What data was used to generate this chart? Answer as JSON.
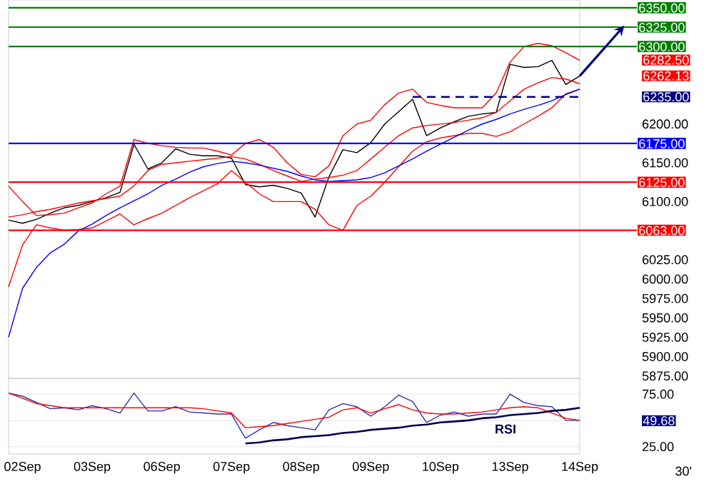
{
  "chart_data": [
    {
      "type": "line",
      "tick_labels": "y",
      "ylim": [
        5872,
        6360
      ],
      "categories": [
        null,
        null,
        null,
        null,
        null,
        null,
        null,
        null,
        null,
        null,
        null,
        null,
        null,
        null,
        null,
        null,
        null,
        null,
        null,
        null,
        null,
        null,
        null,
        null,
        null,
        null,
        null,
        null,
        null,
        null,
        null,
        null,
        null,
        null,
        null,
        null,
        null,
        null,
        null,
        null,
        null,
        null
      ],
      "yticks": [
        {
          "value": 5875,
          "label": "5875.00"
        },
        {
          "value": 5900,
          "label": "5900.00"
        },
        {
          "value": 5925,
          "label": "5925.00"
        },
        {
          "value": 5950,
          "label": "5950.00"
        },
        {
          "value": 5975,
          "label": "5975.00"
        },
        {
          "value": 6000,
          "label": "6000.00"
        },
        {
          "value": 6025,
          "label": "6025.00"
        },
        {
          "value": 6100,
          "label": "6100.00"
        },
        {
          "value": 6150,
          "label": "6150.00"
        },
        {
          "value": 6200,
          "label": "6200.00"
        },
        {
          "value": 6235,
          "label": "6235.00"
        },
        {
          "value": 6262.13,
          "label": "6262.13"
        },
        {
          "value": 6282.5,
          "label": "6282.50"
        }
      ],
      "series": [
        {
          "color": "#000000",
          "values": [
            6076,
            6072,
            6077,
            6085,
            6092,
            6095,
            6100,
            6105,
            6112,
            6174,
            6142,
            6150,
            6168,
            6161,
            6159,
            6159,
            6156,
            6122,
            6119,
            6121,
            6117,
            6111,
            6080,
            6132,
            6167,
            6163,
            6176,
            6200,
            6216,
            6232,
            6185,
            6195,
            6203,
            6210,
            6213,
            6215,
            6277,
            6273,
            6274,
            6282,
            6251,
            6262
          ]
        },
        {
          "color": "#ff0000",
          "values": [
            6120,
            6100,
            6082,
            6083,
            6085,
            6092,
            6098,
            6110,
            6120,
            6180,
            6175,
            6172,
            6170,
            6169,
            6169,
            6165,
            6160,
            6175,
            6180,
            6170,
            6150,
            6135,
            6132,
            6146,
            6185,
            6200,
            6205,
            6225,
            6240,
            6245,
            6228,
            6224,
            6221,
            6221,
            6221,
            6240,
            6280,
            6300,
            6304,
            6301,
            6292,
            6282
          ]
        },
        {
          "color": "#ff0000",
          "values": [
            6080,
            6083,
            6087,
            6090,
            6094,
            6098,
            6101,
            6104,
            6107,
            6120,
            6140,
            6148,
            6150,
            6152,
            6154,
            6156,
            6158,
            6155,
            6148,
            6140,
            6133,
            6126,
            6129,
            6131,
            6134,
            6140,
            6155,
            6170,
            6185,
            6195,
            6198,
            6200,
            6202,
            6205,
            6208,
            6215,
            6230,
            6245,
            6253,
            6260,
            6258,
            6252
          ]
        },
        {
          "color": "#ff0000",
          "values": [
            5990,
            6044,
            6070,
            6066,
            6063,
            6064,
            6066,
            6075,
            6084,
            6070,
            6078,
            6085,
            6095,
            6105,
            6114,
            6123,
            6140,
            6125,
            6110,
            6100,
            6100,
            6100,
            6090,
            6070,
            6063,
            6095,
            6107,
            6125,
            6145,
            6165,
            6177,
            6182,
            6185,
            6188,
            6188,
            6184,
            6190,
            6200,
            6210,
            6221,
            6239,
            6245
          ]
        },
        {
          "color": "#0000ff",
          "values": [
            5925,
            5988,
            6015,
            6034,
            6045,
            6062,
            6071,
            6082,
            6092,
            6101,
            6110,
            6121,
            6129,
            6138,
            6145,
            6149,
            6152,
            6150,
            6147,
            6143,
            6139,
            6133,
            6128,
            6126,
            6127,
            6128,
            6131,
            6137,
            6146,
            6155,
            6165,
            6174,
            6183,
            6192,
            6200,
            6206,
            6213,
            6219,
            6224,
            6230,
            6238,
            6245
          ]
        },
        {
          "color": "#000080",
          "line_style": "dashed",
          "values": [
            null,
            null,
            null,
            null,
            null,
            null,
            null,
            null,
            null,
            null,
            null,
            null,
            null,
            null,
            null,
            null,
            null,
            null,
            null,
            null,
            null,
            null,
            null,
            null,
            null,
            null,
            null,
            null,
            null,
            6235,
            6235,
            6235,
            6235,
            6235,
            6235,
            6235,
            6235,
            6235,
            6235,
            6235,
            6235,
            6235
          ]
        }
      ],
      "ref_lines": [
        {
          "axis": "y",
          "value": 6350,
          "label": "6350.00",
          "color": "#008000"
        },
        {
          "axis": "y",
          "value": 6325,
          "label": "6325.00",
          "color": "#008000"
        },
        {
          "axis": "y",
          "value": 6300,
          "label": "6300.00",
          "color": "#008000"
        },
        {
          "axis": "y",
          "value": 6175,
          "label": "6175.00",
          "color": "#0000ff"
        },
        {
          "axis": "y",
          "value": 6125,
          "label": "6125.00",
          "color": "#ff0000"
        },
        {
          "axis": "y",
          "value": 6063,
          "label": "6063.00",
          "color": "#ff0000"
        }
      ]
    },
    {
      "type": "line",
      "ylim": [
        18,
        90
      ],
      "grid": "y",
      "categories": [
        null,
        "02Sep",
        null,
        null,
        null,
        null,
        "03Sep",
        null,
        null,
        null,
        null,
        "06Sep",
        null,
        null,
        null,
        null,
        "07Sep",
        null,
        null,
        null,
        null,
        "08Sep",
        null,
        null,
        null,
        null,
        "09Sep",
        null,
        null,
        null,
        null,
        "10Sep",
        null,
        null,
        null,
        null,
        "13Sep",
        null,
        null,
        null,
        null,
        "14Sep"
      ],
      "yticks": [
        {
          "value": 25,
          "label": "25.00"
        },
        {
          "value": 49.68,
          "label": "49.68"
        },
        {
          "value": 75,
          "label": "75.00"
        }
      ],
      "series": [
        {
          "color": "#3030b0",
          "values": [
            76,
            73,
            67,
            61,
            62,
            60,
            64,
            61,
            57,
            76,
            59,
            59,
            63,
            58,
            57,
            56,
            56,
            33,
            41,
            48,
            45,
            43,
            41,
            60,
            66,
            63,
            54,
            63,
            74,
            68,
            48,
            55,
            58,
            54,
            56,
            56,
            75,
            67,
            64,
            63,
            50,
            50
          ]
        },
        {
          "color": "#ff0000",
          "values": [
            76,
            71,
            66,
            64,
            62,
            62,
            62,
            62,
            62,
            62,
            62,
            62,
            62,
            62,
            61,
            59,
            57,
            43,
            44,
            45,
            47,
            49,
            51,
            53,
            60,
            62,
            57,
            61,
            65,
            60,
            57,
            56,
            56,
            57,
            58,
            60,
            62,
            63,
            62,
            57,
            52,
            50
          ]
        },
        {
          "color": "#000050",
          "values": [
            null,
            null,
            null,
            null,
            null,
            null,
            null,
            null,
            null,
            null,
            null,
            null,
            null,
            null,
            null,
            null,
            null,
            28,
            29,
            31,
            32,
            34,
            35,
            36,
            38,
            39,
            41,
            42,
            43,
            45,
            46,
            48,
            49,
            50,
            52,
            53,
            55,
            56,
            57,
            59,
            60,
            62
          ]
        }
      ],
      "annotations": [
        "RSI",
        "30'"
      ]
    }
  ]
}
